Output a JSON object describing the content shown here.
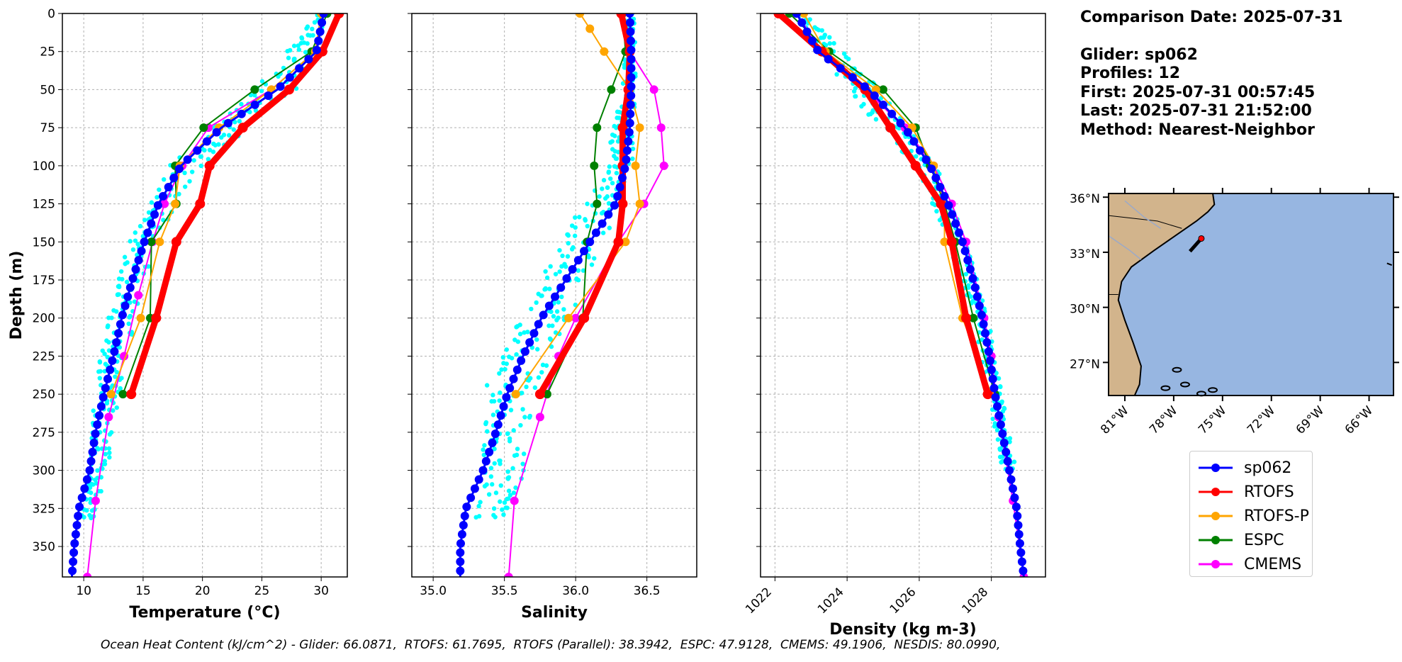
{
  "info": {
    "comparison_date": "Comparison Date: 2025-07-31",
    "glider": "Glider: sp062",
    "profiles": "Profiles: 12",
    "first": "First: 2025-07-31 00:57:45",
    "last": "Last: 2025-07-31 21:52:00",
    "method": "Method: Nearest-Neighbor"
  },
  "footer": "Ocean Heat Content (kJ/cm^2) - Glider: 66.0871,  RTOFS: 61.7695,  RTOFS (Parallel): 38.3942,  ESPC: 47.9128,  CMEMS: 49.1906,  NESDIS: 80.0990,",
  "colors": {
    "sp062": "#0000ff",
    "RTOFS": "#ff0000",
    "RTOFS-P": "#ffa500",
    "ESPC": "#008000",
    "CMEMS": "#ff00ff",
    "glider_profiles": "#00ffff",
    "land": "#d2b48c",
    "ocean": "#97b6e1"
  },
  "map": {
    "lat_ticks": [
      "36°N",
      "33°N",
      "30°N",
      "27°N"
    ],
    "lon_ticks": [
      "81°W",
      "78°W",
      "75°W",
      "72°W",
      "69°W",
      "66°W"
    ],
    "extent": {
      "lon": [
        -82,
        -64.5
      ],
      "lat": [
        25.2,
        36.2
      ]
    },
    "glider_location": {
      "lon": -76.6,
      "lat": 33.4
    }
  },
  "chart_data": [
    {
      "type": "line",
      "xlabel": "Temperature (°C)",
      "ylabel": "Depth (m)",
      "xlim": [
        8.2,
        32.2
      ],
      "ylim": [
        370,
        0
      ],
      "xticks": [
        "10",
        "15",
        "20",
        "25",
        "30"
      ],
      "yticks": [
        "0",
        "25",
        "50",
        "75",
        "100",
        "125",
        "150",
        "175",
        "200",
        "225",
        "250",
        "275",
        "300",
        "325",
        "350"
      ],
      "grid": true,
      "glider_profile_range": [
        [
          0,
          29.6,
          30.6
        ],
        [
          50,
          24.5,
          28.3
        ],
        [
          100,
          17.2,
          20.0
        ],
        [
          150,
          13.8,
          16.0
        ],
        [
          200,
          12.1,
          14.5
        ],
        [
          250,
          10.8,
          13.0
        ],
        [
          300,
          10.4,
          12.0
        ],
        [
          330,
          9.8,
          11.0
        ]
      ],
      "series": [
        {
          "name": "sp062",
          "depth": [
            0,
            25,
            50,
            75,
            100,
            125,
            150,
            175,
            200,
            225,
            250,
            275,
            300,
            325,
            350,
            370
          ],
          "values": [
            30.2,
            29.6,
            26.3,
            21.6,
            18.2,
            16.3,
            15.1,
            14.1,
            13.2,
            12.5,
            11.7,
            11.0,
            10.5,
            9.6,
            9.2,
            9.0
          ]
        },
        {
          "name": "RTOFS",
          "depth": [
            0,
            25,
            50,
            75,
            100,
            125,
            150,
            200,
            250
          ],
          "values": [
            31.5,
            30.1,
            27.3,
            23.4,
            20.6,
            19.8,
            17.8,
            16.1,
            14.0
          ]
        },
        {
          "name": "RTOFS-P",
          "depth": [
            0,
            25,
            50,
            75,
            100,
            125,
            150,
            200,
            250
          ],
          "values": [
            30.0,
            29.5,
            25.8,
            21.4,
            18.1,
            17.7,
            16.4,
            14.8,
            12.3
          ]
        },
        {
          "name": "ESPC",
          "depth": [
            0,
            25,
            50,
            75,
            100,
            125,
            150,
            200,
            250
          ],
          "values": [
            30.5,
            29.2,
            24.4,
            20.1,
            17.7,
            17.8,
            15.7,
            15.6,
            13.3
          ]
        },
        {
          "name": "CMEMS",
          "depth": [
            0,
            25,
            50,
            75,
            100,
            125,
            150,
            185,
            225,
            265,
            320,
            370
          ],
          "values": [
            30.2,
            29.5,
            25.8,
            20.5,
            18.3,
            16.8,
            15.8,
            14.6,
            13.4,
            12.1,
            11.0,
            10.3
          ]
        }
      ]
    },
    {
      "type": "line",
      "xlabel": "Salinity",
      "xlim": [
        34.85,
        36.85
      ],
      "ylim": [
        370,
        0
      ],
      "xticks": [
        "35.0",
        "35.5",
        "36.0",
        "36.5"
      ],
      "grid": true,
      "glider_profile_range": [
        [
          0,
          36.35,
          36.42
        ],
        [
          50,
          36.33,
          36.42
        ],
        [
          100,
          36.2,
          36.4
        ],
        [
          150,
          35.9,
          36.2
        ],
        [
          200,
          35.6,
          35.95
        ],
        [
          250,
          35.35,
          35.7
        ],
        [
          300,
          35.35,
          35.65
        ],
        [
          330,
          35.3,
          35.5
        ]
      ],
      "series": [
        {
          "name": "sp062",
          "depth": [
            0,
            25,
            50,
            75,
            100,
            125,
            150,
            175,
            200,
            225,
            250,
            275,
            300,
            325,
            350,
            370
          ],
          "values": [
            36.38,
            36.39,
            36.39,
            36.38,
            36.35,
            36.28,
            36.1,
            35.93,
            35.76,
            35.63,
            35.52,
            35.44,
            35.35,
            35.23,
            35.19,
            35.19
          ]
        },
        {
          "name": "RTOFS",
          "depth": [
            0,
            25,
            50,
            75,
            100,
            125,
            150,
            200,
            250
          ],
          "values": [
            36.32,
            36.38,
            36.37,
            36.33,
            36.33,
            36.33,
            36.3,
            36.06,
            35.75
          ]
        },
        {
          "name": "RTOFS-P",
          "depth": [
            0,
            10,
            25,
            50,
            75,
            100,
            125,
            150,
            200,
            250
          ],
          "values": [
            36.03,
            36.1,
            36.2,
            36.38,
            36.45,
            36.42,
            36.45,
            36.35,
            35.95,
            35.58
          ]
        },
        {
          "name": "ESPC",
          "depth": [
            0,
            25,
            50,
            75,
            100,
            125,
            150,
            200,
            250
          ],
          "values": [
            36.33,
            36.35,
            36.25,
            36.15,
            36.13,
            36.15,
            36.08,
            36.05,
            35.8
          ]
        },
        {
          "name": "CMEMS",
          "depth": [
            0,
            25,
            50,
            75,
            100,
            125,
            150,
            200,
            225,
            265,
            320,
            370
          ],
          "values": [
            36.33,
            36.38,
            36.55,
            36.6,
            36.62,
            36.48,
            36.3,
            36.0,
            35.88,
            35.75,
            35.57,
            35.53
          ]
        }
      ]
    },
    {
      "type": "line",
      "xlabel": "Density (kg m-3)",
      "xlim": [
        1021.6,
        1029.5
      ],
      "ylim": [
        370,
        0
      ],
      "xticks": [
        "1022",
        "1024",
        "1026",
        "1028"
      ],
      "grid": true,
      "glider_profile_range": [
        [
          0,
          1022.5,
          1022.9
        ],
        [
          50,
          1024.0,
          1025.0
        ],
        [
          100,
          1025.9,
          1026.5
        ],
        [
          150,
          1026.8,
          1027.3
        ],
        [
          200,
          1027.5,
          1027.9
        ],
        [
          250,
          1027.9,
          1028.3
        ],
        [
          300,
          1028.3,
          1028.7
        ]
      ],
      "series": [
        {
          "name": "sp062",
          "depth": [
            0,
            25,
            50,
            75,
            100,
            125,
            150,
            175,
            200,
            225,
            250,
            275,
            300,
            325,
            350,
            370
          ],
          "values": [
            1022.6,
            1023.2,
            1024.6,
            1025.6,
            1026.3,
            1026.8,
            1027.2,
            1027.5,
            1027.75,
            1027.95,
            1028.1,
            1028.3,
            1028.5,
            1028.7,
            1028.8,
            1028.9
          ]
        },
        {
          "name": "RTOFS",
          "depth": [
            0,
            25,
            50,
            75,
            100,
            125,
            150,
            200,
            250
          ],
          "values": [
            1022.1,
            1023.3,
            1024.5,
            1025.2,
            1025.9,
            1026.6,
            1026.9,
            1027.3,
            1027.9
          ]
        },
        {
          "name": "RTOFS-P",
          "depth": [
            0,
            25,
            50,
            75,
            100,
            125,
            150,
            200,
            250
          ],
          "values": [
            1022.8,
            1023.4,
            1024.8,
            1025.8,
            1026.4,
            1026.7,
            1026.7,
            1027.2,
            1028.0
          ]
        },
        {
          "name": "ESPC",
          "depth": [
            0,
            25,
            50,
            75,
            100,
            125,
            150,
            200,
            250
          ],
          "values": [
            1022.4,
            1023.5,
            1025.0,
            1025.9,
            1026.3,
            1026.7,
            1027.0,
            1027.5,
            1028.1
          ]
        },
        {
          "name": "CMEMS",
          "depth": [
            0,
            25,
            50,
            75,
            100,
            125,
            150,
            200,
            225,
            265,
            320,
            370
          ],
          "values": [
            1022.6,
            1023.3,
            1024.5,
            1025.6,
            1026.4,
            1026.9,
            1027.3,
            1027.8,
            1028.0,
            1028.2,
            1028.6,
            1028.9
          ]
        }
      ]
    }
  ],
  "legend": [
    {
      "name": "sp062"
    },
    {
      "name": "RTOFS"
    },
    {
      "name": "RTOFS-P"
    },
    {
      "name": "ESPC"
    },
    {
      "name": "CMEMS"
    }
  ]
}
